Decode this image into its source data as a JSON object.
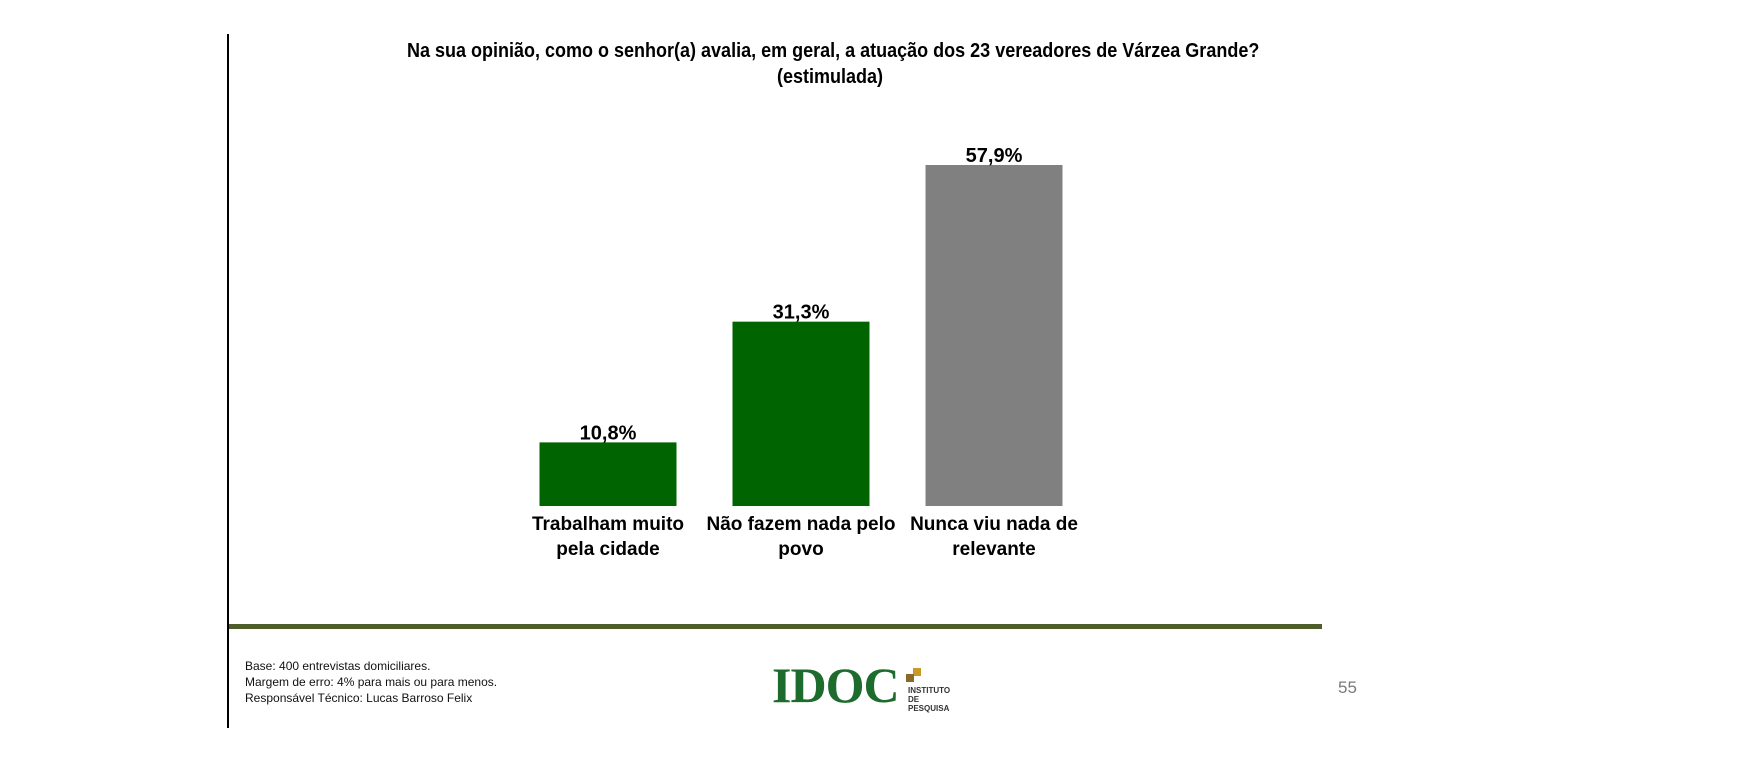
{
  "chart_data": {
    "type": "bar",
    "title": "Na sua opinião, como o senhor(a) avalia, em geral, a atuação dos 23 vereadores de Várzea Grande?",
    "subtitle": "(estimulada)",
    "categories": [
      [
        "Trabalham muito",
        "pela cidade"
      ],
      [
        "Não fazem nada pelo",
        "povo"
      ],
      [
        "Nunca viu nada de",
        "relevante"
      ]
    ],
    "values": [
      10.8,
      31.3,
      57.9
    ],
    "value_labels": [
      "10,8%",
      "31,3%",
      "57,9%"
    ],
    "colors": [
      "#006400",
      "#006400",
      "#808080"
    ],
    "ylim": [
      0,
      57.9
    ],
    "grid": false,
    "legend": "none"
  },
  "footer": {
    "notes": [
      "Base: 400 entrevistas domiciliares.",
      "Margem de erro: 4% para mais ou para menos.",
      "Responsável Técnico: Lucas Barroso Felix"
    ],
    "logo": {
      "word": "IDOC",
      "sub1": "INSTITUTO",
      "sub2": "DE PESQUISA"
    },
    "page_number": "55"
  },
  "colors": {
    "rule": "#4e5e2a",
    "logo_green": "#1e6b2e",
    "page_number": "#7a7a7a"
  }
}
